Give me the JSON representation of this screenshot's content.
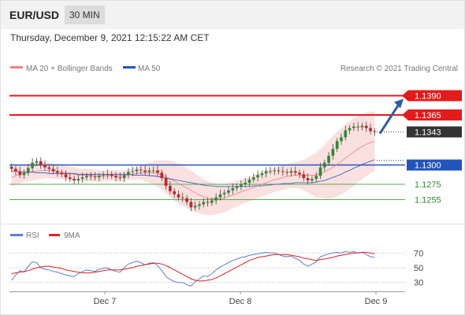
{
  "header": {
    "pair": "EUR/USD",
    "timeframe": "30 MIN"
  },
  "timestamp": "Thursday, December 9, 2021 12:15:22 AM CET",
  "legend": {
    "ma20": "MA 20 + Bollinger Bands",
    "ma50": "MA 50",
    "credit": "Research © 2021 Trading Central",
    "rsi": "RSI",
    "ma9": "9MA"
  },
  "colors": {
    "red": "#e31b1b",
    "blue": "#2255bb",
    "green": "#5aaa50",
    "band": "#f7c6c6",
    "candle_up": "#2e8b2e",
    "candle_down": "#cc2222",
    "rsi": "#5c7ed6",
    "ma9": "#dd2222"
  },
  "chart_data": {
    "type": "candlestick",
    "title": "",
    "x_labels": [
      "Dec 7",
      "Dec 8",
      "Dec 9"
    ],
    "y_range": [
      1.123,
      1.141
    ],
    "current_price": "1.1343",
    "levels": [
      {
        "value": 1.139,
        "label": "1.1390",
        "kind": "resistance",
        "color": "#e31b1b"
      },
      {
        "value": 1.1365,
        "label": "1.1365",
        "kind": "resistance",
        "color": "#e31b1b"
      },
      {
        "value": 1.1343,
        "label": "1.1343",
        "kind": "last",
        "color": "#333333"
      },
      {
        "value": 1.13,
        "label": "1.1300",
        "kind": "pivot",
        "color": "#2255bb"
      },
      {
        "value": 1.1275,
        "label": "1.1275",
        "kind": "support",
        "color": "#5aaa50"
      },
      {
        "value": 1.1255,
        "label": "1.1255",
        "kind": "support",
        "color": "#5aaa50"
      }
    ],
    "close": [
      1.1295,
      1.1292,
      1.1287,
      1.129,
      1.1296,
      1.1303,
      1.1305,
      1.13,
      1.1297,
      1.1295,
      1.1292,
      1.129,
      1.1288,
      1.1284,
      1.1282,
      1.128,
      1.1282,
      1.1284,
      1.1286,
      1.1285,
      1.1284,
      1.1286,
      1.1287,
      1.1288,
      1.1286,
      1.1284,
      1.1283,
      1.1287,
      1.1291,
      1.1292,
      1.1294,
      1.1293,
      1.1291,
      1.1293,
      1.1293,
      1.129,
      1.1283,
      1.1273,
      1.1266,
      1.1262,
      1.1258,
      1.1257,
      1.1252,
      1.1245,
      1.1247,
      1.1249,
      1.1252,
      1.1251,
      1.1254,
      1.1258,
      1.1262,
      1.1264,
      1.1267,
      1.127,
      1.1272,
      1.1275,
      1.1277,
      1.1281,
      1.1284,
      1.1287,
      1.1289,
      1.1292,
      1.1292,
      1.1293,
      1.1292,
      1.1291,
      1.129,
      1.1292,
      1.129,
      1.1288,
      1.1283,
      1.128,
      1.1282,
      1.1286,
      1.1297,
      1.1303,
      1.1312,
      1.1321,
      1.1331,
      1.1336,
      1.1345,
      1.1348,
      1.135,
      1.1349,
      1.1351,
      1.1348,
      1.1344,
      1.1343
    ],
    "ma20": [
      1.1284,
      1.1286,
      1.1288,
      1.1289,
      1.129,
      1.1291,
      1.1292,
      1.1293,
      1.1293,
      1.1293,
      1.1292,
      1.1292,
      1.1291,
      1.129,
      1.1289,
      1.1288,
      1.1287,
      1.1287,
      1.1287,
      1.1287,
      1.1286,
      1.1286,
      1.1286,
      1.1286,
      1.1286,
      1.1286,
      1.1286,
      1.1286,
      1.1287,
      1.1288,
      1.1289,
      1.129,
      1.129,
      1.129,
      1.129,
      1.1289,
      1.1287,
      1.1285,
      1.1282,
      1.1279,
      1.1276,
      1.1273,
      1.127,
      1.1267,
      1.1264,
      1.1261,
      1.1259,
      1.1257,
      1.1256,
      1.1256,
      1.1256,
      1.1257,
      1.1259,
      1.1261,
      1.1263,
      1.1265,
      1.1267,
      1.1269,
      1.1271,
      1.1273,
      1.1275,
      1.1277,
      1.1279,
      1.1281,
      1.1282,
      1.1284,
      1.1285,
      1.1286,
      1.1287,
      1.1287,
      1.1287,
      1.1287,
      1.1287,
      1.1287,
      1.1289,
      1.1291,
      1.1294,
      1.1297,
      1.1301,
      1.1305,
      1.1309,
      1.1313,
      1.1317,
      1.1321,
      1.1324,
      1.1327,
      1.1329,
      1.1331
    ],
    "ma50": [
      1.1292,
      1.1292,
      1.1291,
      1.1291,
      1.1291,
      1.1291,
      1.129,
      1.129,
      1.129,
      1.1289,
      1.1289,
      1.1289,
      1.1289,
      1.1289,
      1.1289,
      1.1289,
      1.1288,
      1.1288,
      1.1288,
      1.1288,
      1.1288,
      1.1288,
      1.1288,
      1.1288,
      1.1288,
      1.1288,
      1.1288,
      1.1288,
      1.1288,
      1.1287,
      1.1287,
      1.1287,
      1.1287,
      1.1286,
      1.1286,
      1.1285,
      1.1284,
      1.1283,
      1.1282,
      1.1281,
      1.128,
      1.1279,
      1.1278,
      1.1277,
      1.1276,
      1.1275,
      1.1274,
      1.1273,
      1.1273,
      1.1272,
      1.1272,
      1.1272,
      1.1272,
      1.1272,
      1.1272,
      1.1272,
      1.1272,
      1.1272,
      1.1273,
      1.1273,
      1.1273,
      1.1274,
      1.1274,
      1.1275,
      1.1275,
      1.1276,
      1.1276,
      1.1276,
      1.1277,
      1.1277,
      1.1277,
      1.1277,
      1.1277,
      1.1278,
      1.1279,
      1.128,
      1.1282,
      1.1284,
      1.1286,
      1.1288,
      1.1291,
      1.1293,
      1.1296,
      1.1298,
      1.1301,
      1.1303,
      1.1305,
      1.1307
    ],
    "band_width": [
      0.0012,
      0.0012,
      0.0012,
      0.0011,
      0.0011,
      0.0011,
      0.0011,
      0.0011,
      0.001,
      0.001,
      0.001,
      0.001,
      0.0009,
      0.0009,
      0.0009,
      0.0009,
      0.0008,
      0.0008,
      0.0008,
      0.0008,
      0.0008,
      0.0007,
      0.0007,
      0.0007,
      0.0007,
      0.0007,
      0.0007,
      0.0007,
      0.0007,
      0.0007,
      0.0008,
      0.0009,
      0.0011,
      0.0013,
      0.0015,
      0.0017,
      0.0019,
      0.0022,
      0.0024,
      0.0025,
      0.0026,
      0.0026,
      0.0026,
      0.0026,
      0.0025,
      0.0024,
      0.0023,
      0.0022,
      0.0021,
      0.002,
      0.0019,
      0.0018,
      0.0018,
      0.0017,
      0.0017,
      0.0016,
      0.0016,
      0.0016,
      0.0016,
      0.0016,
      0.0016,
      0.0016,
      0.0016,
      0.0016,
      0.0016,
      0.0016,
      0.0016,
      0.0016,
      0.0017,
      0.0018,
      0.002,
      0.0023,
      0.0026,
      0.0029,
      0.0032,
      0.0035,
      0.0038,
      0.004,
      0.0042,
      0.0043,
      0.0044,
      0.0044,
      0.0044,
      0.0043,
      0.0042,
      0.0041,
      0.004,
      0.0039
    ],
    "forecast": {
      "from": 1.1343,
      "to": 1.139
    },
    "rsi": {
      "label": "RSI",
      "levels": [
        70,
        50,
        30
      ],
      "ylim": [
        20,
        80
      ],
      "values": [
        33,
        40,
        46,
        44,
        52,
        58,
        57,
        50,
        48,
        47,
        45,
        44,
        42,
        40,
        39,
        38,
        42,
        45,
        47,
        46,
        45,
        48,
        49,
        50,
        47,
        45,
        44,
        50,
        55,
        57,
        59,
        57,
        54,
        56,
        57,
        53,
        46,
        38,
        34,
        31,
        30,
        30,
        27,
        25,
        31,
        35,
        39,
        38,
        42,
        47,
        51,
        54,
        57,
        60,
        62,
        64,
        65,
        67,
        68,
        69,
        70,
        71,
        70,
        70,
        68,
        66,
        65,
        66,
        63,
        60,
        55,
        52,
        55,
        58,
        65,
        67,
        69,
        70,
        71,
        70,
        72,
        71,
        72,
        70,
        71,
        68,
        65,
        64
      ],
      "ma9": [
        42,
        43,
        44,
        45,
        46,
        48,
        50,
        51,
        52,
        52,
        51,
        50,
        49,
        47,
        46,
        45,
        44,
        43,
        43,
        43,
        44,
        45,
        46,
        47,
        47,
        47,
        47,
        48,
        49,
        50,
        52,
        53,
        54,
        55,
        56,
        56,
        55,
        53,
        50,
        47,
        44,
        41,
        38,
        35,
        33,
        32,
        32,
        33,
        34,
        36,
        39,
        42,
        45,
        48,
        51,
        54,
        57,
        60,
        62,
        64,
        65,
        66,
        67,
        68,
        68,
        68,
        68,
        67,
        66,
        65,
        63,
        62,
        61,
        60,
        61,
        62,
        63,
        64,
        66,
        67,
        68,
        69,
        70,
        70,
        71,
        71,
        70,
        69
      ]
    }
  }
}
